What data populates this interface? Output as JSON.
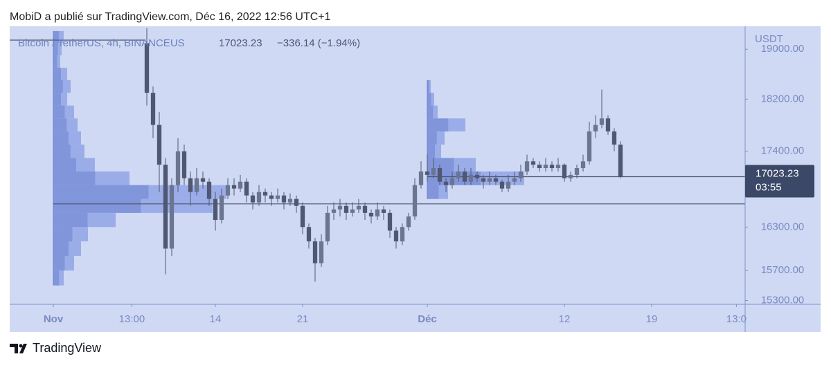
{
  "chart_data": {
    "type": "candlestick",
    "header": "MobiD a publié sur TradingView.com, Déc 16, 2022 12:56 UTC+1",
    "symbol": "Bitcoin / TetherUS, 4h, BINANCEUS",
    "last_price": 17023.23,
    "change": "−336.14 (−1.94%)",
    "currency": "USDT",
    "countdown": "03:55",
    "footer": "TradingView",
    "log_scale": true,
    "color": "#4f5870",
    "ylim": [
      15250,
      19380
    ],
    "yticks": [
      {
        "value": 19000,
        "label": "19000.00"
      },
      {
        "value": 18200,
        "label": "18200.00"
      },
      {
        "value": 17400,
        "label": "17400.00"
      },
      {
        "value": 16300,
        "label": "16300.00"
      },
      {
        "value": 15700,
        "label": "15700.00"
      },
      {
        "value": 15300,
        "label": "15300.00"
      }
    ],
    "xlim": [
      -3.5,
      55.5
    ],
    "xticks": [
      {
        "value": 0,
        "label": "Nov"
      },
      {
        "value": 6.3,
        "label": "13:00"
      },
      {
        "value": 13,
        "label": "14"
      },
      {
        "value": 20,
        "label": "21"
      },
      {
        "value": 30,
        "label": "Déc"
      },
      {
        "value": 41,
        "label": "12"
      },
      {
        "value": 48,
        "label": "19"
      },
      {
        "value": 54.8,
        "label": "13:0"
      }
    ],
    "x": [
      7.5,
      8,
      8.5,
      9,
      9.5,
      10,
      10.5,
      11,
      11.5,
      12,
      12.5,
      13,
      13.5,
      14,
      14.5,
      15,
      15.5,
      16,
      16.5,
      17,
      17.5,
      18,
      18.5,
      19,
      19.5,
      20,
      20.5,
      21,
      21.5,
      22,
      22.5,
      23,
      23.5,
      24,
      24.5,
      25,
      25.5,
      26,
      26.5,
      27,
      27.5,
      28,
      28.5,
      29,
      29.5,
      30,
      30.5,
      31,
      31.5,
      32,
      32.5,
      33,
      33.5,
      34,
      34.5,
      35,
      35.5,
      36,
      36.5,
      37,
      37.5,
      38,
      38.5,
      39,
      39.5,
      40,
      40.5,
      41,
      41.5,
      42,
      42.5,
      43,
      43.5,
      44,
      44.5,
      45,
      45.5
    ],
    "open": [
      19100,
      18300,
      17800,
      17200,
      16000,
      16900,
      17400,
      17000,
      16800,
      17000,
      16950,
      16700,
      16400,
      16750,
      16900,
      16850,
      16950,
      16750,
      16650,
      16800,
      16750,
      16700,
      16750,
      16650,
      16700,
      16600,
      16300,
      16100,
      15800,
      16100,
      16500,
      16550,
      16600,
      16500,
      16550,
      16600,
      16500,
      16450,
      16550,
      16500,
      16250,
      16100,
      16300,
      16450,
      16900,
      17100,
      17050,
      17150,
      16950,
      16900,
      17000,
      17100,
      16950,
      17050,
      17000,
      16950,
      17000,
      16950,
      16850,
      16950,
      17000,
      17100,
      17250,
      17200,
      17150,
      17200,
      17150,
      17200,
      17000,
      17050,
      17150,
      17250,
      17700,
      17800,
      17900,
      17700,
      17500
    ],
    "high": [
      19350,
      18400,
      18000,
      17300,
      17000,
      17600,
      17500,
      17100,
      17150,
      17100,
      17000,
      16800,
      16850,
      17000,
      17000,
      17050,
      17000,
      16800,
      16900,
      16850,
      16800,
      16850,
      16800,
      16780,
      16750,
      16650,
      16350,
      16150,
      16200,
      16600,
      16650,
      16700,
      16650,
      16650,
      16700,
      16650,
      16550,
      16650,
      16600,
      16550,
      16300,
      16350,
      16500,
      17000,
      17250,
      17350,
      17300,
      17200,
      17000,
      17100,
      17200,
      17150,
      17150,
      17100,
      17050,
      17100,
      17050,
      16980,
      17050,
      17100,
      17200,
      17350,
      17300,
      17250,
      17300,
      17250,
      17300,
      17220,
      17100,
      17200,
      17350,
      17850,
      17950,
      18350,
      17950,
      17750,
      17550
    ],
    "low": [
      18100,
      17600,
      16800,
      15650,
      15900,
      16800,
      16900,
      16600,
      16750,
      16850,
      16600,
      16250,
      16350,
      16700,
      16750,
      16800,
      16650,
      16550,
      16600,
      16650,
      16600,
      16650,
      16550,
      16600,
      16500,
      16200,
      16000,
      15550,
      15750,
      16050,
      16400,
      16450,
      16400,
      16450,
      16500,
      16400,
      16350,
      16400,
      16400,
      16150,
      16000,
      16050,
      16250,
      16400,
      16850,
      16950,
      17000,
      16900,
      16800,
      16850,
      16950,
      16900,
      16900,
      16950,
      16850,
      16900,
      16900,
      16800,
      16800,
      16900,
      16950,
      17050,
      17150,
      17100,
      17100,
      17100,
      17100,
      16950,
      16950,
      17000,
      17100,
      17200,
      17600,
      17750,
      17650,
      17400,
      17000
    ],
    "close": [
      18300,
      17800,
      17200,
      16000,
      16900,
      17400,
      17000,
      16800,
      17000,
      16950,
      16700,
      16400,
      16750,
      16900,
      16850,
      16950,
      16750,
      16650,
      16800,
      16750,
      16700,
      16750,
      16650,
      16700,
      16600,
      16300,
      16100,
      15800,
      16100,
      16500,
      16550,
      16600,
      16500,
      16550,
      16600,
      16500,
      16450,
      16550,
      16500,
      16250,
      16100,
      16300,
      16450,
      16900,
      17100,
      17050,
      17150,
      16950,
      16900,
      17000,
      17100,
      16950,
      17050,
      17000,
      16950,
      17000,
      16950,
      16850,
      16950,
      17000,
      17100,
      17250,
      17200,
      17150,
      17200,
      17150,
      17200,
      17000,
      17050,
      17150,
      17250,
      17700,
      17800,
      17900,
      17700,
      17500,
      17023.23
    ],
    "volume_profiles": [
      {
        "start_x": 0,
        "color": "#8a9ee6",
        "levels": [
          19200,
          19000,
          18800,
          18600,
          18400,
          18200,
          18000,
          17800,
          17600,
          17400,
          17200,
          17000,
          16800,
          16600,
          16400,
          16200,
          16000,
          15800,
          15600
        ],
        "volumes": [
          15,
          12,
          10,
          20,
          25,
          20,
          30,
          35,
          40,
          45,
          60,
          110,
          250,
          230,
          90,
          50,
          40,
          30,
          15
        ]
      },
      {
        "start_x": 30,
        "color": "#8a9ee6",
        "levels": [
          18400,
          18200,
          18000,
          17800,
          17600,
          17400,
          17200,
          17000,
          16800
        ],
        "volumes": [
          5,
          10,
          15,
          55,
          25,
          20,
          70,
          140,
          30
        ]
      }
    ],
    "price_lines": [
      {
        "price": 19150,
        "from_x": -3.5,
        "to_x": 7.3
      },
      {
        "price": 16629,
        "from_x": 0,
        "to_x": 55.5
      },
      {
        "price": 17023.23,
        "from_x": 30,
        "to_x": 55.5
      }
    ]
  }
}
